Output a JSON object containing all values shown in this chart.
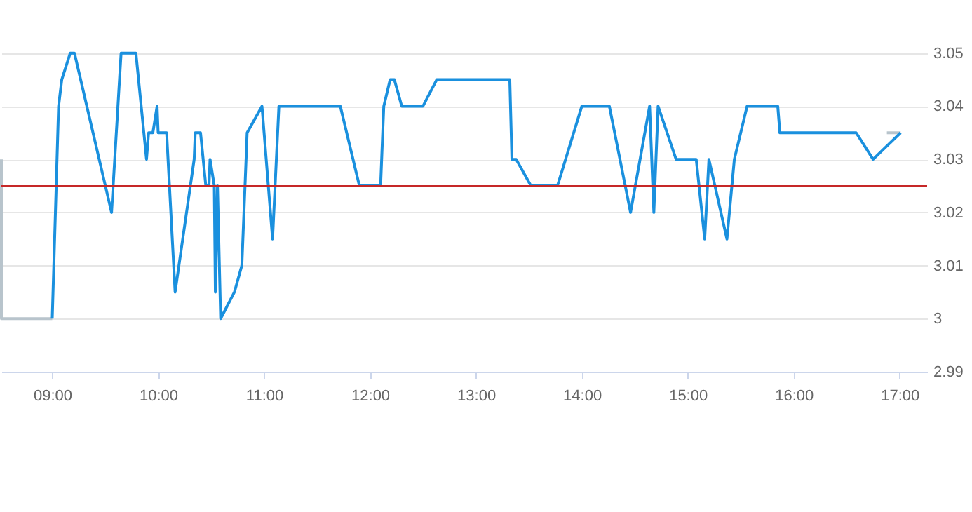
{
  "chart_data": {
    "type": "line",
    "xlim": [
      8.52,
      17.26
    ],
    "xticks": [
      {
        "value": 9,
        "label": "09:00"
      },
      {
        "value": 10,
        "label": "10:00"
      },
      {
        "value": 11,
        "label": "11:00"
      },
      {
        "value": 12,
        "label": "12:00"
      },
      {
        "value": 13,
        "label": "13:00"
      },
      {
        "value": 14,
        "label": "14:00"
      },
      {
        "value": 15,
        "label": "15:00"
      },
      {
        "value": 16,
        "label": "16:00"
      },
      {
        "value": 17,
        "label": "17:00"
      }
    ],
    "ylim": [
      2.99,
      3.06
    ],
    "yticks": [
      2.99,
      3,
      3.01,
      3.02,
      3.03,
      3.04,
      3.05
    ],
    "grid": "y",
    "line_style": "solid",
    "series": [
      {
        "color": "#b8c4cc",
        "x": [
          8.52,
          8.52,
          9.0,
          null,
          16.88,
          17.01
        ],
        "values": [
          3.03,
          3.0,
          3.0,
          null,
          3.035,
          3.035
        ]
      },
      {
        "color": "#1a90de",
        "x": [
          9.0,
          9.06,
          9.09,
          9.17,
          9.21,
          9.56,
          9.65,
          9.79,
          9.89,
          9.91,
          9.95,
          9.99,
          10.0,
          10.08,
          10.16,
          10.34,
          10.35,
          10.4,
          10.45,
          10.48,
          10.49,
          10.53,
          10.54,
          10.56,
          10.59,
          10.72,
          10.79,
          10.84,
          10.98,
          11.08,
          11.14,
          11.72,
          11.9,
          12.1,
          12.13,
          12.19,
          12.23,
          12.3,
          12.5,
          12.63,
          13.32,
          13.34,
          13.38,
          13.52,
          13.77,
          14.0,
          14.26,
          14.46,
          14.64,
          14.68,
          14.72,
          14.89,
          15.08,
          15.16,
          15.2,
          15.37,
          15.44,
          15.56,
          15.85,
          15.87,
          16.59,
          16.75,
          17.01
        ],
        "values": [
          3.0,
          3.04,
          3.045,
          3.05,
          3.05,
          3.02,
          3.05,
          3.05,
          3.03,
          3.035,
          3.035,
          3.04,
          3.035,
          3.035,
          3.005,
          3.03,
          3.035,
          3.035,
          3.025,
          3.025,
          3.03,
          3.025,
          3.005,
          3.025,
          3.0,
          3.005,
          3.01,
          3.035,
          3.04,
          3.015,
          3.04,
          3.04,
          3.025,
          3.025,
          3.04,
          3.045,
          3.045,
          3.04,
          3.04,
          3.045,
          3.045,
          3.03,
          3.03,
          3.025,
          3.025,
          3.04,
          3.04,
          3.02,
          3.04,
          3.02,
          3.04,
          3.03,
          3.03,
          3.015,
          3.03,
          3.015,
          3.03,
          3.04,
          3.04,
          3.035,
          3.035,
          3.03,
          3.035
        ]
      }
    ],
    "ref_lines": [
      {
        "axis": "y",
        "value": 3.025,
        "color": "#c62828"
      }
    ]
  }
}
